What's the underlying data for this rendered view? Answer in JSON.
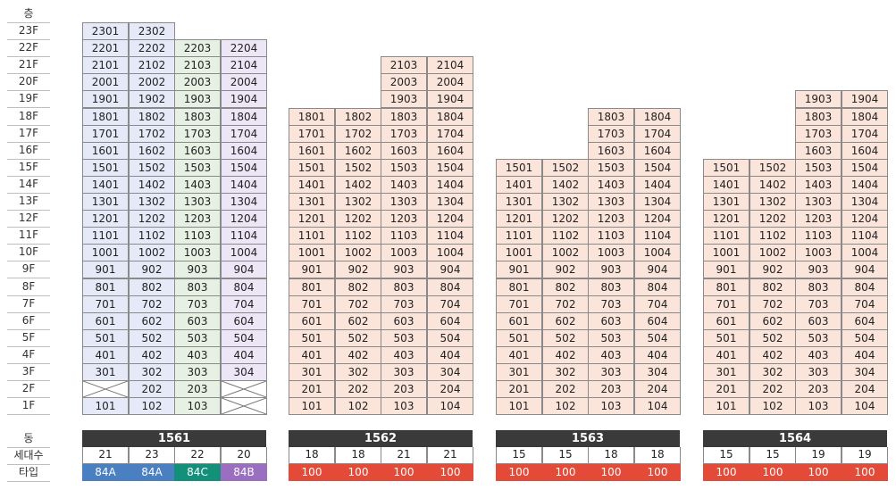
{
  "labels": {
    "floor_header": "층",
    "building": "동",
    "households": "세대수",
    "type": "타입"
  },
  "floors": [
    "23F",
    "22F",
    "21F",
    "20F",
    "19F",
    "18F",
    "17F",
    "16F",
    "15F",
    "14F",
    "13F",
    "12F",
    "11F",
    "10F",
    "9F",
    "8F",
    "7F",
    "6F",
    "5F",
    "4F",
    "3F",
    "2F",
    "1F"
  ],
  "colors": {
    "84A": "#4a7fc1",
    "84C": "#12907a",
    "84B": "#9a6fbf",
    "100": "#e34a38",
    "building_bar": "#3a3a3a"
  },
  "buildings": [
    {
      "name": "1561",
      "columns": [
        {
          "line": "01",
          "top_floor": 23,
          "missing_floors": [
            2
          ],
          "households": "21",
          "type": "84A",
          "tint": "blue"
        },
        {
          "line": "02",
          "top_floor": 23,
          "missing_floors": [],
          "households": "23",
          "type": "84A",
          "tint": "blue"
        },
        {
          "line": "03",
          "top_floor": 22,
          "missing_floors": [],
          "households": "22",
          "type": "84C",
          "tint": "green"
        },
        {
          "line": "04",
          "top_floor": 22,
          "missing_floors": [
            1,
            2
          ],
          "households": "20",
          "type": "84B",
          "tint": "purple"
        }
      ]
    },
    {
      "name": "1562",
      "columns": [
        {
          "line": "01",
          "top_floor": 18,
          "missing_floors": [],
          "households": "18",
          "type": "100",
          "tint": "pink"
        },
        {
          "line": "02",
          "top_floor": 18,
          "missing_floors": [],
          "households": "18",
          "type": "100",
          "tint": "pink"
        },
        {
          "line": "03",
          "top_floor": 21,
          "missing_floors": [],
          "households": "21",
          "type": "100",
          "tint": "pink"
        },
        {
          "line": "04",
          "top_floor": 21,
          "missing_floors": [],
          "households": "21",
          "type": "100",
          "tint": "pink"
        }
      ]
    },
    {
      "name": "1563",
      "columns": [
        {
          "line": "01",
          "top_floor": 15,
          "missing_floors": [],
          "households": "15",
          "type": "100",
          "tint": "pink"
        },
        {
          "line": "02",
          "top_floor": 15,
          "missing_floors": [],
          "households": "15",
          "type": "100",
          "tint": "pink"
        },
        {
          "line": "03",
          "top_floor": 18,
          "missing_floors": [],
          "households": "18",
          "type": "100",
          "tint": "pink"
        },
        {
          "line": "04",
          "top_floor": 18,
          "missing_floors": [],
          "households": "18",
          "type": "100",
          "tint": "pink"
        }
      ]
    },
    {
      "name": "1564",
      "columns": [
        {
          "line": "01",
          "top_floor": 15,
          "missing_floors": [],
          "households": "15",
          "type": "100",
          "tint": "pink"
        },
        {
          "line": "02",
          "top_floor": 15,
          "missing_floors": [],
          "households": "15",
          "type": "100",
          "tint": "pink"
        },
        {
          "line": "03",
          "top_floor": 19,
          "missing_floors": [],
          "households": "19",
          "type": "100",
          "tint": "pink"
        },
        {
          "line": "04",
          "top_floor": 19,
          "missing_floors": [],
          "households": "19",
          "type": "100",
          "tint": "pink"
        }
      ]
    }
  ]
}
